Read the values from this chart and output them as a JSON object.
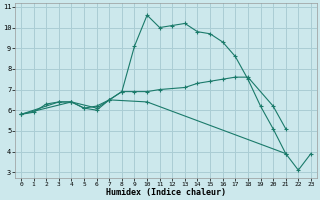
{
  "xlabel": "Humidex (Indice chaleur)",
  "bg_color": "#cce8ec",
  "grid_color": "#aacdd4",
  "line_color": "#1a7a6a",
  "xlim": [
    -0.5,
    23.5
  ],
  "ylim": [
    2.7,
    11.2
  ],
  "xticks": [
    0,
    1,
    2,
    3,
    4,
    5,
    6,
    7,
    8,
    9,
    10,
    11,
    12,
    13,
    14,
    15,
    16,
    17,
    18,
    19,
    20,
    21,
    22,
    23
  ],
  "yticks": [
    3,
    4,
    5,
    6,
    7,
    8,
    9,
    10,
    11
  ],
  "line1_x": [
    0,
    1,
    2,
    3,
    4,
    5,
    6,
    7,
    8,
    9,
    10,
    11,
    12,
    13,
    14,
    15,
    16,
    17,
    18,
    19,
    20,
    21,
    22,
    23
  ],
  "line1_y": [
    5.8,
    5.9,
    6.3,
    6.4,
    6.4,
    6.1,
    6.0,
    6.5,
    6.9,
    9.1,
    10.6,
    10.0,
    10.1,
    10.2,
    9.8,
    9.7,
    9.3,
    8.6,
    7.5,
    6.2,
    5.1,
    3.9,
    3.1,
    3.9
  ],
  "line2_x": [
    0,
    3,
    4,
    5,
    6,
    7,
    8,
    9,
    10,
    11,
    13,
    14,
    15,
    16,
    17,
    18,
    20,
    21
  ],
  "line2_y": [
    5.8,
    6.4,
    6.4,
    6.1,
    6.2,
    6.5,
    6.9,
    6.9,
    6.9,
    7.0,
    7.1,
    7.3,
    7.4,
    7.5,
    7.6,
    7.6,
    6.2,
    5.1
  ],
  "line3_x": [
    0,
    4,
    6,
    7,
    10,
    21
  ],
  "line3_y": [
    5.8,
    6.4,
    6.1,
    6.5,
    6.4,
    3.9
  ]
}
